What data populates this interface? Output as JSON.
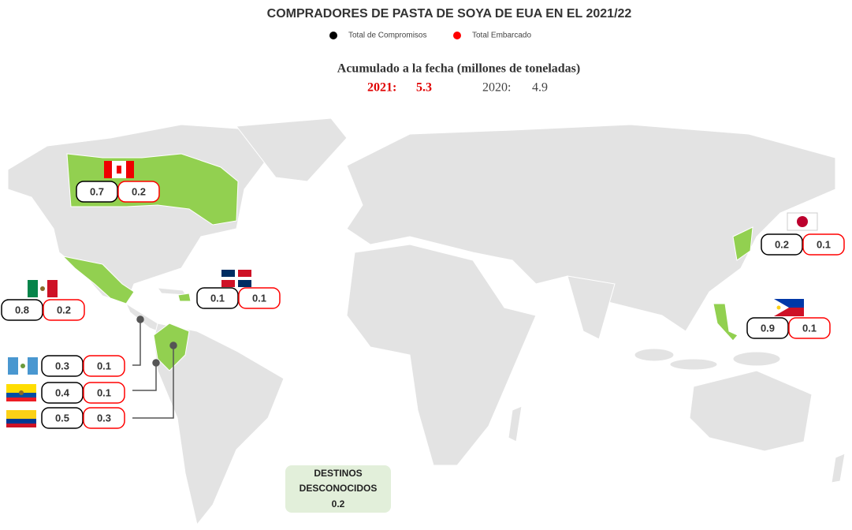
{
  "title": "COMPRADORES DE PASTA DE SOYA DE EUA EN EL 2021/22",
  "legend": [
    {
      "label": "Total de Compromisos",
      "color": "#000000"
    },
    {
      "label": "Total Embarcado",
      "color": "#ff0000"
    }
  ],
  "summary": {
    "title": "Acumulado a la fecha (millones de toneladas)",
    "current": {
      "label": "2021:",
      "value": 5.3
    },
    "previous": {
      "label": "2020:",
      "value": 4.9
    }
  },
  "countries": [
    {
      "compromisos": 0.7,
      "embarcado": 0.2
    },
    {
      "compromisos": 0.8,
      "embarcado": 0.2
    },
    {
      "compromisos": 0.1,
      "embarcado": 0.1
    },
    {
      "compromisos": 0.3,
      "embarcado": 0.1
    },
    {
      "compromisos": 0.4,
      "embarcado": 0.1
    },
    {
      "compromisos": 0.5,
      "embarcado": 0.3
    },
    {
      "compromisos": 0.2,
      "embarcado": 0.1
    },
    {
      "compromisos": 0.9,
      "embarcado": 0.1
    }
  ],
  "unknown": {
    "label_1": "DESTINOS",
    "label_2": "DESCONOCIDOS",
    "value": 0.2
  }
}
